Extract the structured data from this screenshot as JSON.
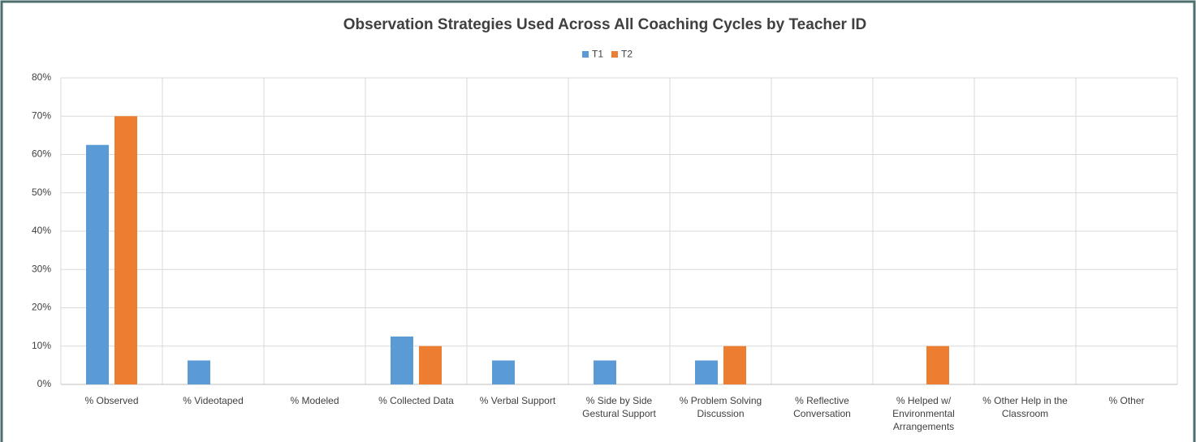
{
  "chart_data": {
    "type": "bar",
    "title": "Observation Strategies Used Across All Coaching Cycles by Teacher ID",
    "categories": [
      "% Observed",
      "% Videotaped",
      "% Modeled",
      "% Collected Data",
      "% Verbal Support",
      "% Side by Side Gestural Support",
      "% Problem Solving Discussion",
      "% Reflective Conversation",
      "% Helped w/ Environmental Arrangements",
      "% Other Help in the Classroom",
      "% Other"
    ],
    "series": [
      {
        "name": "T1",
        "color": "#5b9bd5",
        "values": [
          62.5,
          6.25,
          0,
          12.5,
          6.25,
          6.25,
          6.25,
          0,
          0,
          0,
          0
        ]
      },
      {
        "name": "T2",
        "color": "#ed7d31",
        "values": [
          70,
          0,
          0,
          10,
          0,
          0,
          10,
          0,
          10,
          0,
          0
        ]
      }
    ],
    "ylim": [
      0,
      80
    ],
    "yticks": [
      {
        "value": 0,
        "label": "0%"
      },
      {
        "value": 10,
        "label": "10%"
      },
      {
        "value": 20,
        "label": "20%"
      },
      {
        "value": 30,
        "label": "30%"
      },
      {
        "value": 40,
        "label": "40%"
      },
      {
        "value": 50,
        "label": "50%"
      },
      {
        "value": 60,
        "label": "60%"
      },
      {
        "value": 70,
        "label": "70%"
      },
      {
        "value": 80,
        "label": "80%"
      }
    ],
    "grid": true,
    "legend": "top"
  }
}
